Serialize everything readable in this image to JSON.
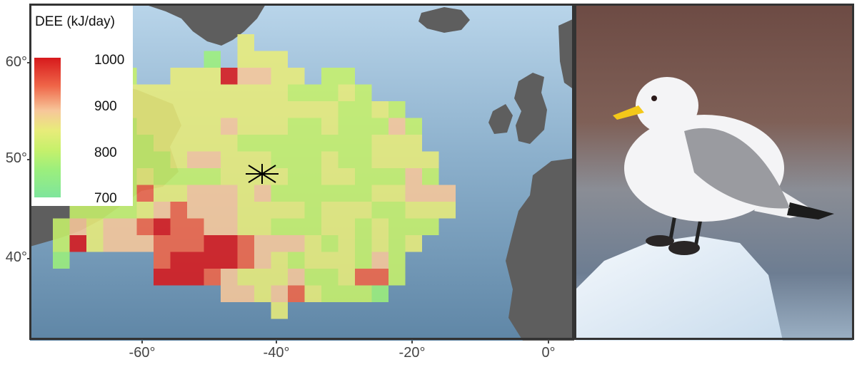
{
  "map": {
    "lat_labels": [
      "60°",
      "50°",
      "40°"
    ],
    "lon_labels": [
      "-60°",
      "-40°",
      "-20°",
      "0°"
    ],
    "colony_marker": "asterisk-marker",
    "legend": {
      "title": "DEE (kJ/day)",
      "ticks": [
        "1000",
        "900",
        "800",
        "700"
      ],
      "min": 700,
      "max": 1000,
      "colors": [
        "#7ee59c",
        "#9cef7c",
        "#c6f06b",
        "#e8ec7a",
        "#f7c79a",
        "#ef6548",
        "#d7191c"
      ]
    },
    "colors": {
      "ocean": "#8fb3cf",
      "land": "#5e5e5e",
      "frame": "#333333"
    }
  },
  "photo": {
    "subject": "black-legged-kittiwake",
    "colors": {
      "background": "#7a5c50",
      "ice": "#e7f1f8",
      "bill": "#f3c81a"
    }
  }
}
